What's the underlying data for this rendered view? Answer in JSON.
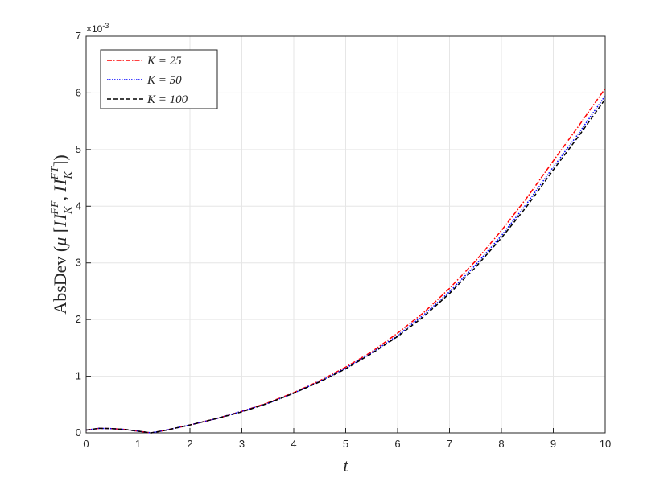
{
  "chart_data": {
    "type": "line",
    "xlabel": "t",
    "ylabel_parts": [
      {
        "t": "AbsDev"
      },
      {
        "t": " ("
      },
      {
        "t": "μ",
        "i": true
      },
      {
        "t": " ["
      },
      {
        "t": "H",
        "i": true
      },
      {
        "t": "K",
        "sub": true
      },
      {
        "t": "FF",
        "sup": true
      },
      {
        "t": ", "
      },
      {
        "t": "H",
        "i": true
      },
      {
        "t": "K",
        "sub": true
      },
      {
        "t": "FT",
        "sup": true
      },
      {
        "t": "])"
      }
    ],
    "yscale_label": {
      "base": "×10",
      "exponent": "-3"
    },
    "x": [
      0,
      0.25,
      0.5,
      0.75,
      1,
      1.25,
      1.5,
      2,
      2.5,
      3,
      3.5,
      4,
      4.5,
      5,
      5.5,
      6,
      6.5,
      7,
      7.5,
      8,
      8.5,
      9,
      9.5,
      10
    ],
    "series": [
      {
        "name": "K = 25",
        "color": "#ff0000",
        "dash": "6,2,1.5,2",
        "values": [
          0.05,
          0.08,
          0.075,
          0.06,
          0.03,
          0.0,
          0.04,
          0.14,
          0.25,
          0.38,
          0.53,
          0.71,
          0.92,
          1.16,
          1.43,
          1.76,
          2.12,
          2.55,
          3.03,
          3.57,
          4.16,
          4.8,
          5.43,
          6.08
        ]
      },
      {
        "name": "K = 50",
        "color": "#0000ff",
        "dash": "1.5,1.5",
        "values": [
          0.05,
          0.08,
          0.075,
          0.06,
          0.03,
          0.0,
          0.04,
          0.14,
          0.25,
          0.38,
          0.52,
          0.7,
          0.91,
          1.14,
          1.41,
          1.72,
          2.08,
          2.49,
          2.96,
          3.48,
          4.06,
          4.69,
          5.3,
          5.95
        ]
      },
      {
        "name": "K = 100",
        "color": "#000000",
        "dash": "5,3",
        "values": [
          0.05,
          0.08,
          0.075,
          0.06,
          0.03,
          0.0,
          0.04,
          0.14,
          0.25,
          0.37,
          0.52,
          0.7,
          0.9,
          1.13,
          1.4,
          1.7,
          2.05,
          2.46,
          2.92,
          3.44,
          4.01,
          4.64,
          5.25,
          5.89
        ]
      }
    ],
    "xlim": [
      0,
      10
    ],
    "ylim": [
      0,
      7
    ],
    "xticks": [
      0,
      1,
      2,
      3,
      4,
      5,
      6,
      7,
      8,
      9,
      10
    ],
    "yticks": [
      0,
      1,
      2,
      3,
      4,
      5,
      6,
      7
    ],
    "grid": true,
    "legend": "upper-left"
  }
}
